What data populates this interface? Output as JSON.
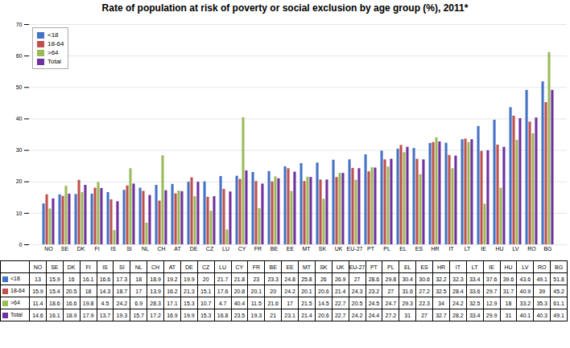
{
  "chart_data": {
    "type": "bar",
    "title": "Rate of population at risk of poverty or social exclusion by age group (%), 2011*",
    "categories": [
      "NO",
      "SE",
      "DK",
      "FI",
      "IS",
      "SI",
      "NL",
      "CH",
      "AT",
      "DE",
      "CZ",
      "LU",
      "CY",
      "FR",
      "BE",
      "EE",
      "MT",
      "SK",
      "UK",
      "EU-27",
      "PT",
      "PL",
      "EL",
      "ES",
      "HR",
      "IT",
      "LT",
      "IE",
      "HU",
      "LV",
      "RO",
      "BG"
    ],
    "series": [
      {
        "name": "<18",
        "color": "#4472C4",
        "values": [
          13,
          15.9,
          16,
          16.1,
          16.6,
          17.3,
          18,
          18.9,
          19.2,
          19.9,
          20,
          21.7,
          21.8,
          23,
          23.3,
          24.8,
          25.8,
          26,
          26.9,
          27,
          28.6,
          29.8,
          30.4,
          30.6,
          32.2,
          32.3,
          33.4,
          37.6,
          39.6,
          43.6,
          49.1,
          51.8
        ]
      },
      {
        "name": "18-64",
        "color": "#C0504D",
        "values": [
          15.9,
          15.4,
          20.5,
          18,
          14.3,
          18.7,
          17,
          13.9,
          16.2,
          21.3,
          15.1,
          17.6,
          20.8,
          20.1,
          20,
          24.2,
          20.1,
          20.6,
          21.4,
          24.3,
          23.2,
          27,
          31.6,
          27.2,
          32.5,
          28.4,
          33.6,
          29.7,
          31.7,
          40.9,
          39,
          45.2
        ]
      },
      {
        "name": ">64",
        "color": "#9BBB59",
        "values": [
          11.4,
          18.6,
          16.6,
          19.8,
          4.5,
          24.2,
          6.9,
          28.3,
          17.1,
          15.3,
          10.7,
          4.7,
          40.4,
          11.5,
          21.6,
          17,
          21.5,
          14.5,
          22.7,
          20.5,
          24.5,
          24.7,
          29.3,
          22.3,
          34,
          24.2,
          32.5,
          12.9,
          18,
          33.2,
          35.3,
          61.1
        ]
      },
      {
        "name": "Total",
        "color": "#7030A0",
        "values": [
          14.6,
          16.1,
          18.9,
          17.9,
          13.7,
          19.3,
          15.7,
          17.2,
          16.9,
          19.9,
          15.3,
          16.8,
          23.5,
          19.3,
          21,
          23.1,
          21.4,
          20.6,
          22.7,
          24.2,
          24.4,
          27.2,
          31,
          27,
          32.7,
          28.2,
          33.4,
          29.9,
          31,
          40.1,
          40.3,
          49.1
        ]
      }
    ],
    "ylim": [
      0,
      70
    ],
    "yticks": [
      0,
      10,
      20,
      30,
      40,
      50,
      60,
      70
    ],
    "grid": true,
    "legend": "upper left"
  }
}
